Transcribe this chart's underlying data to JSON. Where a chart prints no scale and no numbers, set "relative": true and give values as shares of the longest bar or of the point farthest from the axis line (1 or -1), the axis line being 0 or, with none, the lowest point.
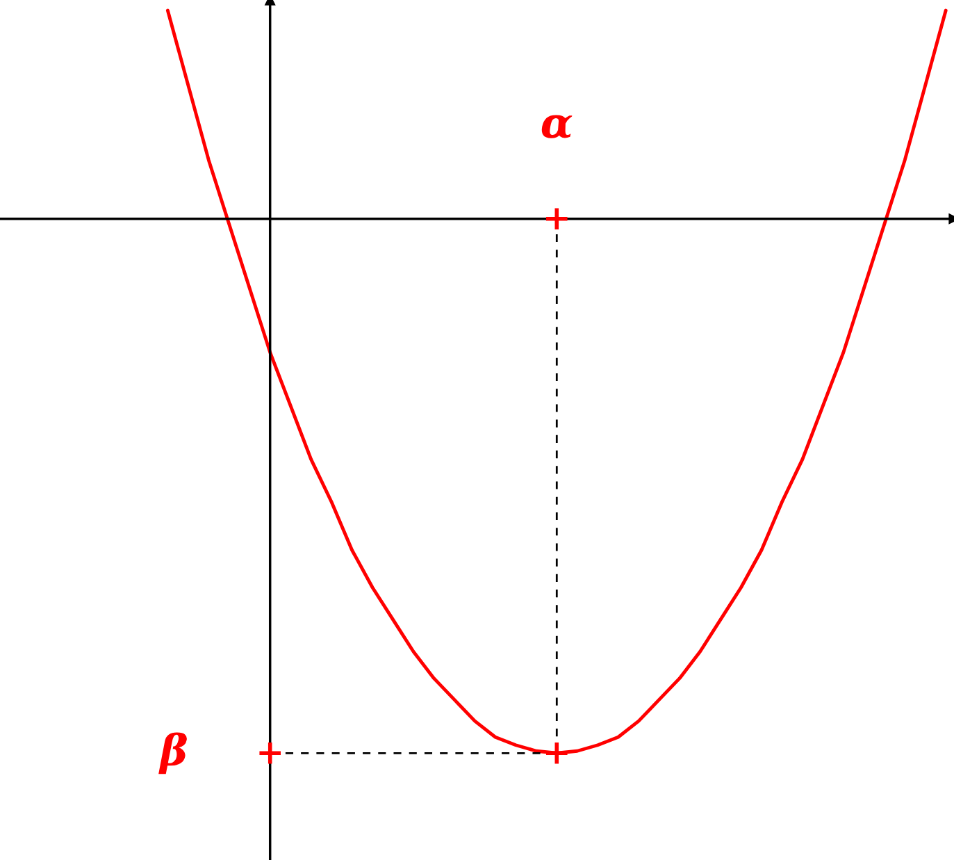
{
  "chart_data": {
    "type": "line",
    "relative": true,
    "color": "#ff0000",
    "categories": [
      null,
      null,
      null,
      null,
      null,
      null,
      null,
      null,
      null,
      null,
      null,
      null,
      null,
      null,
      null,
      null,
      null,
      null,
      null,
      null,
      null,
      null,
      null,
      null,
      null,
      null,
      null,
      null,
      null,
      null,
      null,
      null,
      null,
      null,
      null,
      null,
      null,
      null,
      null
    ],
    "values": [
      0.39,
      0.25,
      0.11,
      -0.01,
      -0.13,
      -0.25,
      -0.35,
      -0.45,
      -0.53,
      -0.62,
      -0.69,
      -0.75,
      -0.81,
      -0.86,
      -0.9,
      -0.94,
      -0.97,
      -0.985,
      -0.996,
      -1.0,
      -0.996,
      -0.985,
      -0.97,
      -0.94,
      -0.9,
      -0.86,
      -0.81,
      -0.75,
      -0.69,
      -0.62,
      -0.53,
      -0.45,
      -0.35,
      -0.25,
      -0.13,
      -0.01,
      0.11,
      0.25,
      0.39
    ],
    "annotations": [
      "α",
      "β"
    ]
  }
}
